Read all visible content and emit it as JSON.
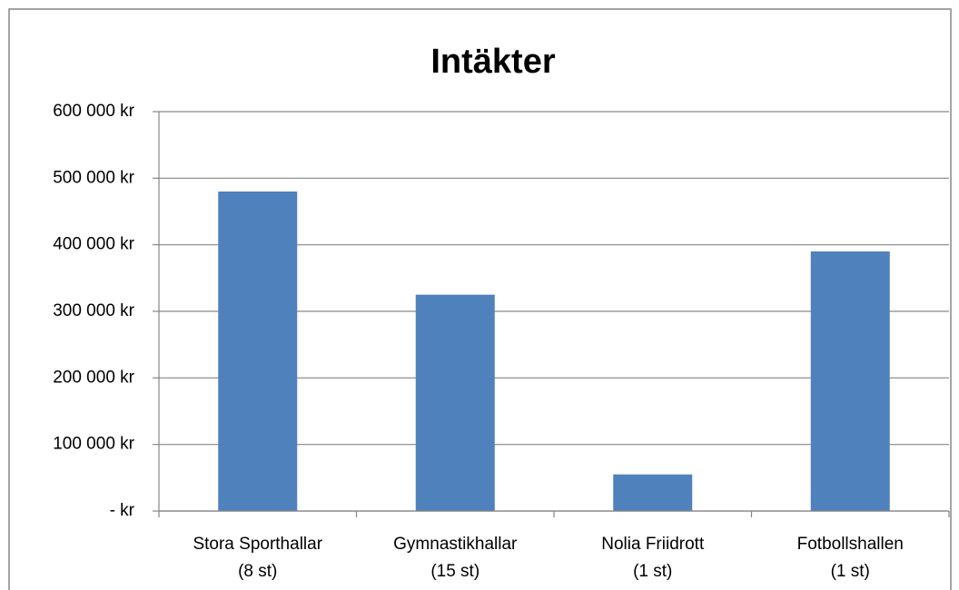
{
  "chart_data": {
    "type": "bar",
    "title": "Intäkter",
    "categories": [
      [
        "Stora Sporthallar",
        "(8 st)"
      ],
      [
        "Gymnastikhallar",
        "(15 st)"
      ],
      [
        "Nolia Friidrott",
        "(1 st)"
      ],
      [
        "Fotbollshallen",
        "(1 st)"
      ]
    ],
    "values": [
      480000,
      325000,
      55000,
      390000
    ],
    "color": "#4f81bd",
    "ylim": [
      0,
      600000
    ],
    "yticks": [
      {
        "value": 0,
        "label": "-   kr"
      },
      {
        "value": 100000,
        "label": "100 000 kr"
      },
      {
        "value": 200000,
        "label": "200 000 kr"
      },
      {
        "value": 300000,
        "label": "300 000 kr"
      },
      {
        "value": 400000,
        "label": "400 000 kr"
      },
      {
        "value": 500000,
        "label": "500 000 kr"
      },
      {
        "value": 600000,
        "label": "600 000 kr"
      }
    ],
    "grid": true
  }
}
